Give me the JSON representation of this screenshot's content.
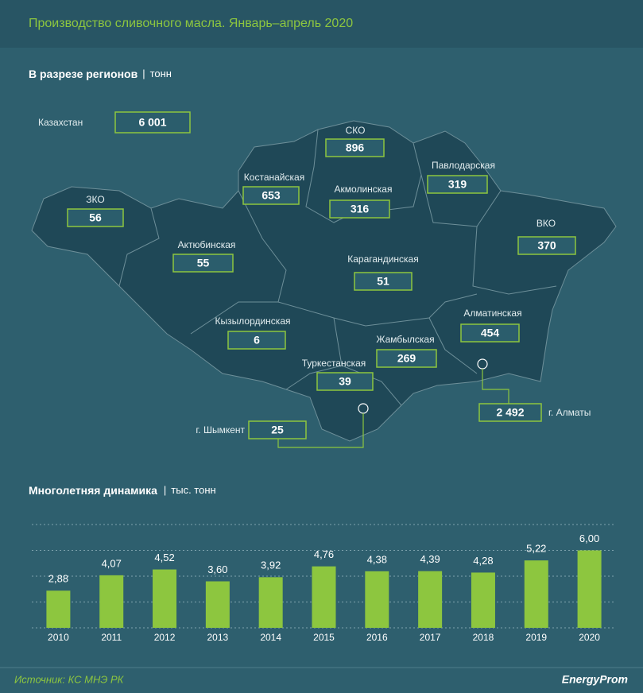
{
  "title": "Производство сливочного масла. Январь–апрель 2020",
  "map": {
    "title": "В разрезе регионов",
    "unit": "тонн",
    "total": {
      "name": "Казахстан",
      "value": 6001,
      "label": "6 001"
    },
    "regions": [
      {
        "name": "ЗКО",
        "value": 56
      },
      {
        "name": "Костанайская",
        "value": 653
      },
      {
        "name": "СКО",
        "value": 896
      },
      {
        "name": "Акмолинская",
        "value": 316
      },
      {
        "name": "Павлодарская",
        "value": 319
      },
      {
        "name": "Актюбинская",
        "value": 55
      },
      {
        "name": "Карагандинская",
        "value": 51
      },
      {
        "name": "ВКО",
        "value": 370
      },
      {
        "name": "Кызылординская",
        "value": 6
      },
      {
        "name": "Алматинская",
        "value": 454
      },
      {
        "name": "Жамбылская",
        "value": 269
      },
      {
        "name": "Туркестанская",
        "value": 39
      },
      {
        "name": "г. Шымкент",
        "value": 25
      },
      {
        "name": "г. Алматы",
        "value": 2492,
        "label": "2 492"
      }
    ]
  },
  "chart_data": {
    "type": "bar",
    "title": "Многолетняя динамика",
    "unit": "тыс. тонн",
    "categories": [
      "2010",
      "2011",
      "2012",
      "2013",
      "2014",
      "2015",
      "2016",
      "2017",
      "2018",
      "2019",
      "2020"
    ],
    "values": [
      2.88,
      4.07,
      4.52,
      3.6,
      3.92,
      4.76,
      4.38,
      4.39,
      4.28,
      5.22,
      6.0
    ],
    "value_labels": [
      "2,88",
      "4,07",
      "4,52",
      "3,60",
      "3,92",
      "4,76",
      "4,38",
      "4,39",
      "4,28",
      "5,22",
      "6,00"
    ],
    "color": "#8dc63f",
    "ylim": [
      0,
      8
    ],
    "yticks": [
      0,
      2,
      4,
      6,
      8
    ],
    "grid": true
  },
  "source": "Источник: КС МНЭ РК",
  "brand": "EnergyProm"
}
